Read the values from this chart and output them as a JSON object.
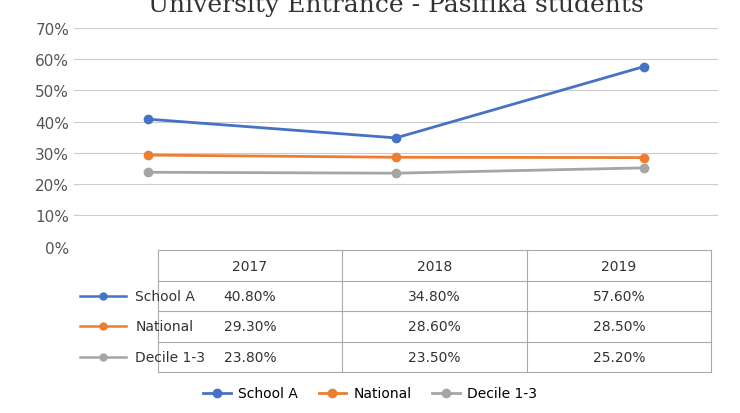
{
  "title": "University Entrance - Pasifika students",
  "years": [
    2017,
    2018,
    2019
  ],
  "series": {
    "School A": [
      0.408,
      0.348,
      0.576
    ],
    "National": [
      0.293,
      0.286,
      0.285
    ],
    "Decile 1-3": [
      0.238,
      0.235,
      0.252
    ]
  },
  "colors": {
    "School A": "#4472C4",
    "National": "#ED7D31",
    "Decile 1-3": "#A5A5A5"
  },
  "table_values": {
    "School A": [
      "40.80%",
      "34.80%",
      "57.60%"
    ],
    "National": [
      "29.30%",
      "28.60%",
      "28.50%"
    ],
    "Decile 1-3": [
      "23.80%",
      "23.50%",
      "25.20%"
    ]
  },
  "ylim": [
    0.0,
    0.7
  ],
  "yticks": [
    0.0,
    0.1,
    0.2,
    0.3,
    0.4,
    0.5,
    0.6,
    0.7
  ],
  "ytick_labels": [
    "0%",
    "10%",
    "20%",
    "30%",
    "40%",
    "50%",
    "60%",
    "70%"
  ],
  "background_color": "#ffffff",
  "title_fontsize": 18,
  "tick_fontsize": 11,
  "table_fontsize": 10,
  "legend_fontsize": 10
}
